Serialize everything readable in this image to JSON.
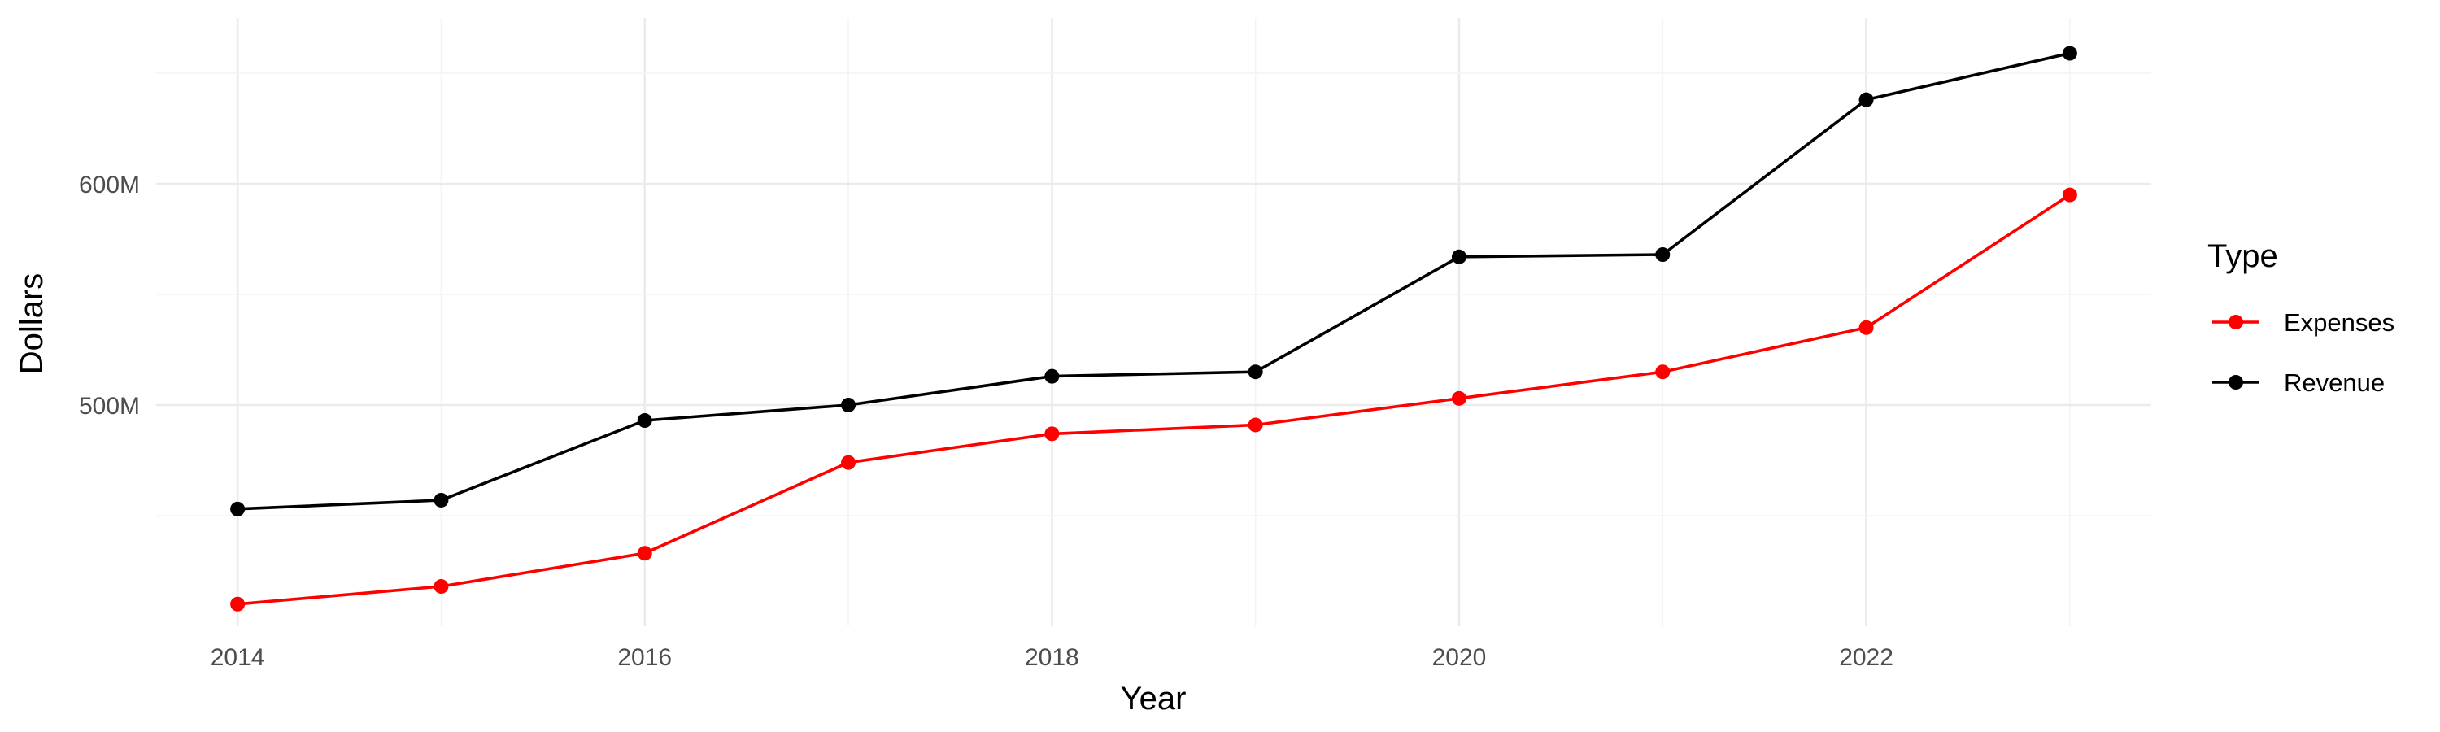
{
  "chart_data": {
    "type": "line",
    "xlabel": "Year",
    "ylabel": "Dollars",
    "x": [
      2014,
      2015,
      2016,
      2017,
      2018,
      2019,
      2020,
      2021,
      2022,
      2023
    ],
    "xlim": [
      2013.6,
      2023.4
    ],
    "x_ticks": [
      2014,
      2016,
      2018,
      2020,
      2022
    ],
    "x_tick_labels": [
      "2014",
      "2016",
      "2018",
      "2020",
      "2022"
    ],
    "ylim": [
      400000000,
      675000000
    ],
    "y_ticks": [
      500000000,
      600000000
    ],
    "y_tick_labels": [
      "500M",
      "600M"
    ],
    "grid": true,
    "legend": {
      "title": "Type",
      "position": "right"
    },
    "series": [
      {
        "name": "Expenses",
        "color": "#ff0000",
        "values": [
          410000000,
          418000000,
          433000000,
          474000000,
          487000000,
          491000000,
          503000000,
          515000000,
          535000000,
          595000000
        ]
      },
      {
        "name": "Revenue",
        "color": "#000000",
        "values": [
          453000000,
          457000000,
          493000000,
          500000000,
          513000000,
          515000000,
          567000000,
          568000000,
          638000000,
          659000000
        ]
      }
    ]
  }
}
